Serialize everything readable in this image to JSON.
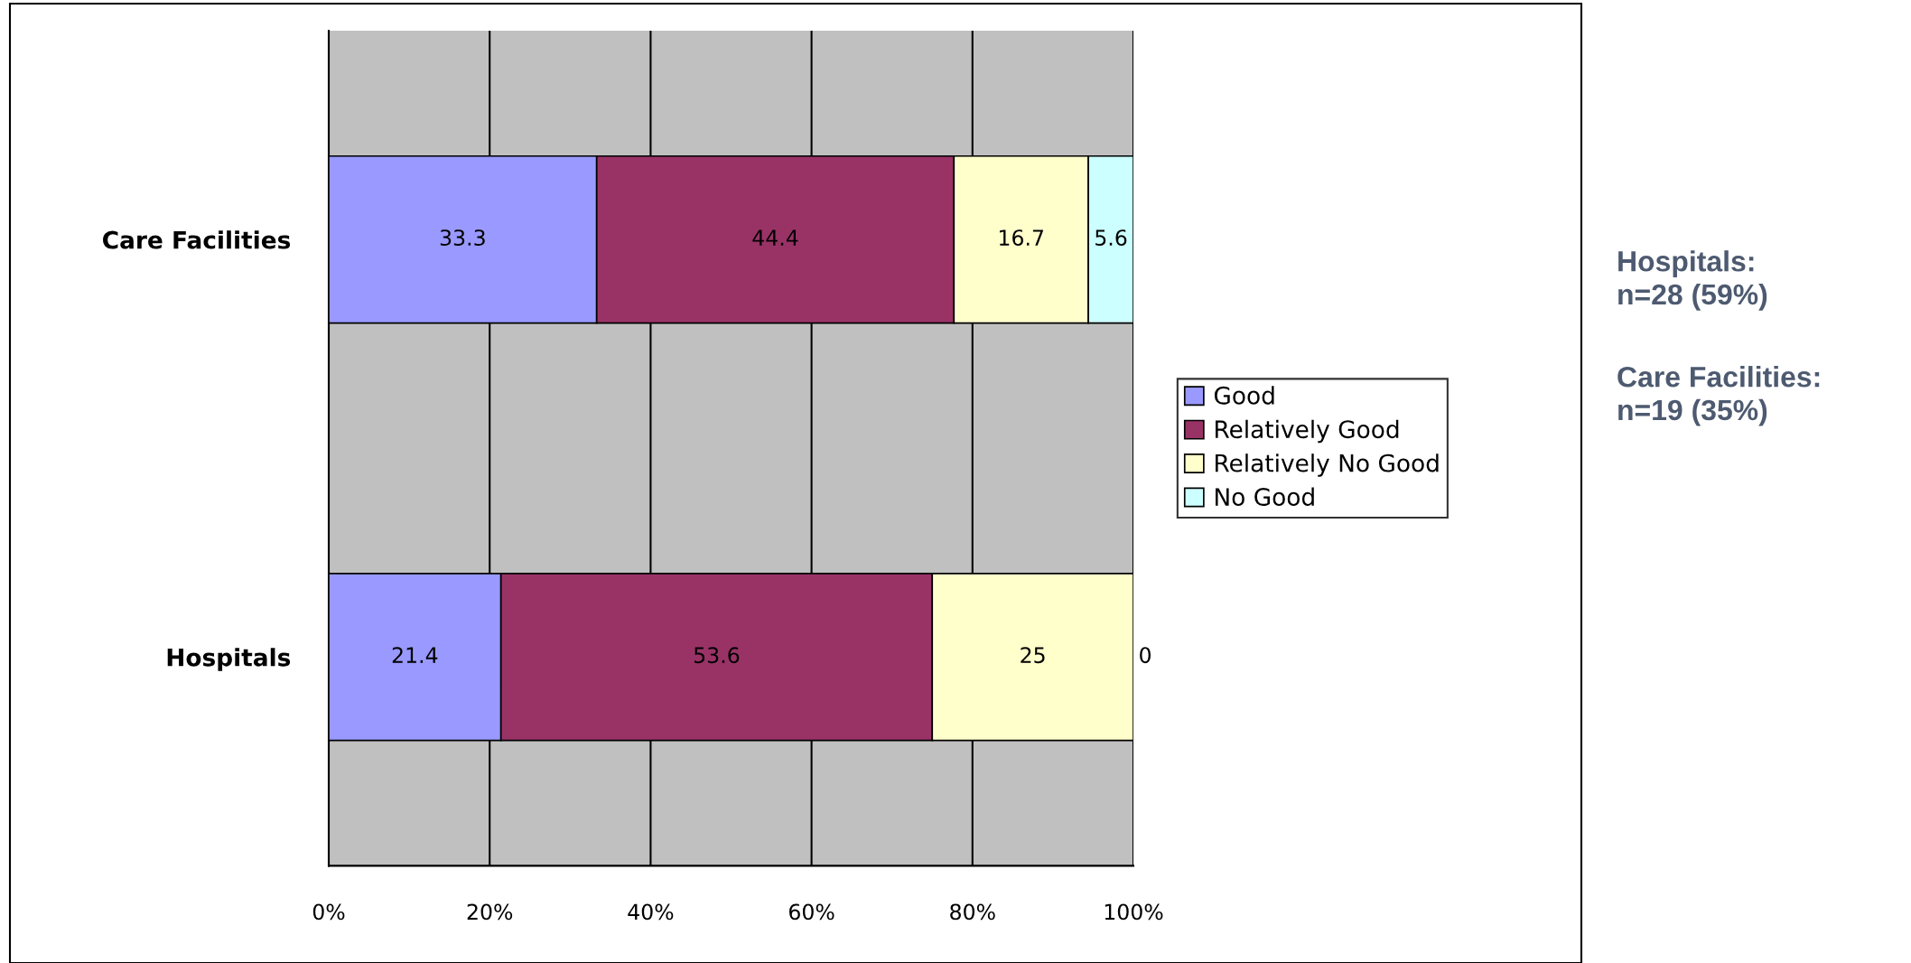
{
  "chart_data": {
    "type": "bar",
    "orientation": "horizontal",
    "stacked": true,
    "categories": [
      "Care Facilities",
      "Hospitals"
    ],
    "series": [
      {
        "name": "Good",
        "color": "#9999ff",
        "values": [
          33.3,
          21.4
        ]
      },
      {
        "name": "Relatively Good",
        "color": "#993366",
        "values": [
          44.4,
          53.6
        ]
      },
      {
        "name": "Relatively No Good",
        "color": "#ffffcc",
        "values": [
          16.7,
          25
        ]
      },
      {
        "name": "No Good",
        "color": "#ccffff",
        "values": [
          5.6,
          0
        ]
      }
    ],
    "xlim": [
      0,
      100
    ],
    "xticks": [
      {
        "value": 0,
        "label": "0%"
      },
      {
        "value": 20,
        "label": "20%"
      },
      {
        "value": 40,
        "label": "40%"
      },
      {
        "value": 60,
        "label": "60%"
      },
      {
        "value": 80,
        "label": "80%"
      },
      {
        "value": 100,
        "label": "100%"
      }
    ],
    "grid": "x",
    "legend": "right",
    "data_labels": true,
    "annotations": [
      "Hospitals:\nn=28 (59%)",
      "Care Facilities:\nn=19 (35%)"
    ]
  }
}
